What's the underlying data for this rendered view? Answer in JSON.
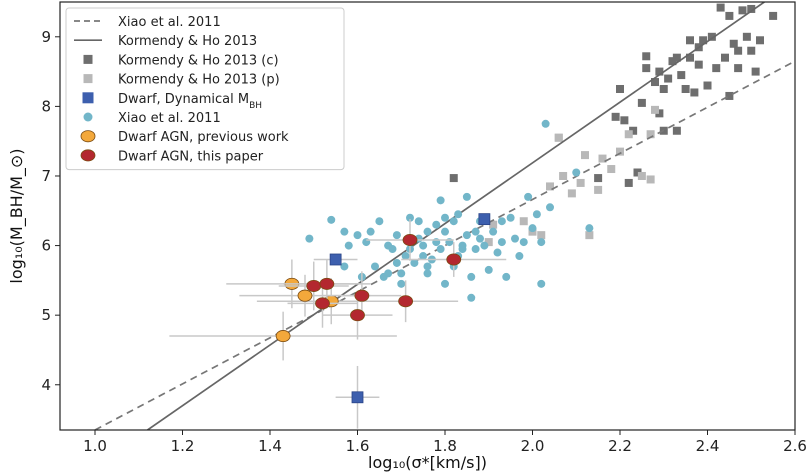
{
  "chart_data": {
    "type": "scatter",
    "xlabel": "log₁₀(σ*[km/s])",
    "ylabel": "log₁₀(M_BH/M_⊙)",
    "xlim": [
      0.92,
      2.6
    ],
    "ylim": [
      3.35,
      9.5
    ],
    "xticks": [
      "1.0",
      "1.2",
      "1.4",
      "1.6",
      "1.8",
      "2.0",
      "2.2",
      "2.4",
      "2.6"
    ],
    "yticks": [
      "4",
      "5",
      "6",
      "7",
      "8",
      "9"
    ],
    "xtick_values": [
      1.0,
      1.2,
      1.4,
      1.6,
      1.8,
      2.0,
      2.2,
      2.4,
      2.6
    ],
    "ytick_values": [
      4,
      5,
      6,
      7,
      8,
      9
    ],
    "grid": false,
    "legend_position": "top-left",
    "legend": [
      {
        "label": "Xiao et al. 2011",
        "kind": "dashed-line",
        "color": "#777777"
      },
      {
        "label": "Kormendy & Ho 2013",
        "kind": "line",
        "color": "#666666"
      },
      {
        "label": "Kormendy & Ho 2013 (c)",
        "kind": "square",
        "color": "#6e6e6e"
      },
      {
        "label": "Kormendy & Ho 2013 (p)",
        "kind": "square",
        "color": "#b8b8b8"
      },
      {
        "label": "Dwarf, Dynamical M",
        "sub": "BH",
        "kind": "square",
        "color": "#3d5fae"
      },
      {
        "label": "Xiao et al. 2011",
        "kind": "circle",
        "color": "#72b6c9"
      },
      {
        "label": "Dwarf AGN, previous work",
        "kind": "circle",
        "color": "#f3a83b"
      },
      {
        "label": "Dwarf AGN, this paper",
        "kind": "circle",
        "color": "#b3282f"
      }
    ],
    "lines": [
      {
        "name": "Xiao et al. 2011",
        "style": "dashed",
        "color": "#777777",
        "x": [
          1.0,
          2.6
        ],
        "y": [
          3.35,
          8.65
        ]
      },
      {
        "name": "Kormendy & Ho 2013",
        "style": "solid",
        "color": "#666666",
        "x": [
          1.12,
          2.53
        ],
        "y": [
          3.35,
          9.5
        ]
      }
    ],
    "series": [
      {
        "name": "Kormendy & Ho 2013 (c)",
        "marker": "square",
        "color": "#6e6e6e",
        "points": [
          [
            1.82,
            6.97
          ],
          [
            2.19,
            7.85
          ],
          [
            2.21,
            7.8
          ],
          [
            2.2,
            8.25
          ],
          [
            2.23,
            7.65
          ],
          [
            2.24,
            7.05
          ],
          [
            2.25,
            8.05
          ],
          [
            2.26,
            8.55
          ],
          [
            2.26,
            8.72
          ],
          [
            2.28,
            8.35
          ],
          [
            2.29,
            7.9
          ],
          [
            2.3,
            8.25
          ],
          [
            2.3,
            7.65
          ],
          [
            2.31,
            8.4
          ],
          [
            2.32,
            8.65
          ],
          [
            2.33,
            8.7
          ],
          [
            2.34,
            8.45
          ],
          [
            2.35,
            8.25
          ],
          [
            2.36,
            8.95
          ],
          [
            2.36,
            8.7
          ],
          [
            2.37,
            8.2
          ],
          [
            2.38,
            8.6
          ],
          [
            2.38,
            8.85
          ],
          [
            2.39,
            8.95
          ],
          [
            2.4,
            8.3
          ],
          [
            2.41,
            9.0
          ],
          [
            2.42,
            8.55
          ],
          [
            2.43,
            9.42
          ],
          [
            2.44,
            8.7
          ],
          [
            2.45,
            9.3
          ],
          [
            2.46,
            8.9
          ],
          [
            2.47,
            8.8
          ],
          [
            2.48,
            9.38
          ],
          [
            2.49,
            9.0
          ],
          [
            2.5,
            8.8
          ],
          [
            2.5,
            9.4
          ],
          [
            2.51,
            8.5
          ],
          [
            2.52,
            8.95
          ],
          [
            2.47,
            8.55
          ],
          [
            2.33,
            7.65
          ],
          [
            2.15,
            6.97
          ],
          [
            2.22,
            6.9
          ],
          [
            2.55,
            9.3
          ],
          [
            2.45,
            8.15
          ],
          [
            2.29,
            8.5
          ]
        ]
      },
      {
        "name": "Kormendy & Ho 2013 (p)",
        "marker": "square",
        "color": "#b8b8b8",
        "points": [
          [
            1.9,
            6.05
          ],
          [
            1.91,
            6.3
          ],
          [
            2.0,
            6.2
          ],
          [
            2.04,
            6.85
          ],
          [
            2.06,
            7.55
          ],
          [
            2.07,
            7.0
          ],
          [
            2.09,
            6.75
          ],
          [
            2.11,
            6.9
          ],
          [
            2.12,
            7.3
          ],
          [
            2.13,
            6.15
          ],
          [
            2.15,
            6.8
          ],
          [
            2.16,
            7.25
          ],
          [
            2.18,
            7.1
          ],
          [
            2.2,
            7.35
          ],
          [
            2.22,
            7.6
          ],
          [
            2.25,
            7.0
          ],
          [
            2.27,
            6.95
          ],
          [
            2.27,
            7.6
          ],
          [
            2.28,
            7.95
          ],
          [
            2.06,
            7.55
          ],
          [
            2.02,
            6.15
          ],
          [
            1.98,
            6.35
          ]
        ]
      },
      {
        "name": "Xiao et al. 2011",
        "marker": "circle",
        "color": "#72b6c9",
        "points": [
          [
            1.49,
            6.1
          ],
          [
            1.54,
            6.37
          ],
          [
            1.57,
            6.2
          ],
          [
            1.6,
            6.15
          ],
          [
            1.62,
            6.05
          ],
          [
            1.63,
            6.2
          ],
          [
            1.64,
            5.7
          ],
          [
            1.66,
            5.55
          ],
          [
            1.67,
            6.0
          ],
          [
            1.68,
            5.95
          ],
          [
            1.69,
            6.15
          ],
          [
            1.7,
            5.6
          ],
          [
            1.71,
            5.85
          ],
          [
            1.72,
            6.4
          ],
          [
            1.72,
            5.95
          ],
          [
            1.73,
            5.75
          ],
          [
            1.74,
            6.35
          ],
          [
            1.75,
            6.0
          ],
          [
            1.75,
            5.85
          ],
          [
            1.76,
            6.2
          ],
          [
            1.76,
            5.6
          ],
          [
            1.77,
            5.8
          ],
          [
            1.78,
            6.3
          ],
          [
            1.78,
            6.05
          ],
          [
            1.79,
            5.95
          ],
          [
            1.8,
            6.2
          ],
          [
            1.8,
            6.4
          ],
          [
            1.8,
            5.45
          ],
          [
            1.81,
            6.05
          ],
          [
            1.82,
            5.7
          ],
          [
            1.83,
            6.45
          ],
          [
            1.83,
            5.85
          ],
          [
            1.84,
            6.0
          ],
          [
            1.85,
            6.7
          ],
          [
            1.85,
            6.15
          ],
          [
            1.86,
            5.55
          ],
          [
            1.86,
            5.25
          ],
          [
            1.87,
            5.95
          ],
          [
            1.88,
            6.35
          ],
          [
            1.88,
            6.1
          ],
          [
            1.89,
            6.0
          ],
          [
            1.9,
            5.65
          ],
          [
            1.91,
            6.2
          ],
          [
            1.92,
            5.9
          ],
          [
            1.93,
            6.05
          ],
          [
            1.94,
            5.55
          ],
          [
            1.95,
            6.4
          ],
          [
            1.96,
            6.1
          ],
          [
            1.97,
            5.85
          ],
          [
            1.98,
            6.05
          ],
          [
            1.99,
            6.7
          ],
          [
            2.0,
            6.25
          ],
          [
            2.01,
            6.45
          ],
          [
            2.02,
            6.05
          ],
          [
            2.03,
            7.75
          ],
          [
            2.04,
            6.55
          ],
          [
            2.1,
            7.05
          ],
          [
            2.13,
            6.25
          ],
          [
            1.87,
            6.2
          ],
          [
            1.79,
            6.65
          ],
          [
            1.82,
            6.35
          ],
          [
            1.69,
            5.75
          ],
          [
            1.61,
            5.55
          ],
          [
            1.58,
            6.0
          ],
          [
            1.65,
            6.35
          ],
          [
            1.7,
            5.45
          ],
          [
            1.76,
            5.7
          ],
          [
            1.84,
            5.95
          ],
          [
            1.93,
            6.35
          ],
          [
            2.02,
            5.45
          ],
          [
            1.74,
            6.1
          ],
          [
            1.67,
            5.6
          ],
          [
            1.57,
            5.7
          ]
        ]
      },
      {
        "name": "Dwarf, Dynamical M_BH",
        "marker": "square",
        "color": "#3d5fae",
        "errorbars": true,
        "points": [
          [
            1.55,
            5.8,
            0.05,
            0.0
          ],
          [
            1.6,
            3.82,
            0.05,
            0.45
          ],
          [
            1.89,
            6.38,
            0.0,
            0.0
          ]
        ]
      },
      {
        "name": "Dwarf AGN, previous work",
        "marker": "circle",
        "color": "#f3a83b",
        "errorbars": true,
        "points": [
          [
            1.43,
            4.7,
            0.26,
            0.35
          ],
          [
            1.45,
            5.45,
            0.15,
            0.35
          ],
          [
            1.48,
            5.28,
            0.15,
            0.3
          ],
          [
            1.54,
            5.2,
            0.17,
            0.33
          ]
        ]
      },
      {
        "name": "Dwarf AGN, this paper",
        "marker": "circle",
        "color": "#b3282f",
        "errorbars": true,
        "points": [
          [
            1.5,
            5.42,
            0.08,
            0.35
          ],
          [
            1.52,
            5.17,
            0.08,
            0.35
          ],
          [
            1.53,
            5.45,
            0.1,
            0.35
          ],
          [
            1.6,
            5.0,
            0.08,
            0.35
          ],
          [
            1.61,
            5.28,
            0.09,
            0.35
          ],
          [
            1.71,
            5.2,
            0.12,
            0.3
          ],
          [
            1.72,
            6.08,
            0.1,
            0.3
          ],
          [
            1.82,
            5.8,
            0.12,
            0.25
          ]
        ]
      }
    ]
  }
}
